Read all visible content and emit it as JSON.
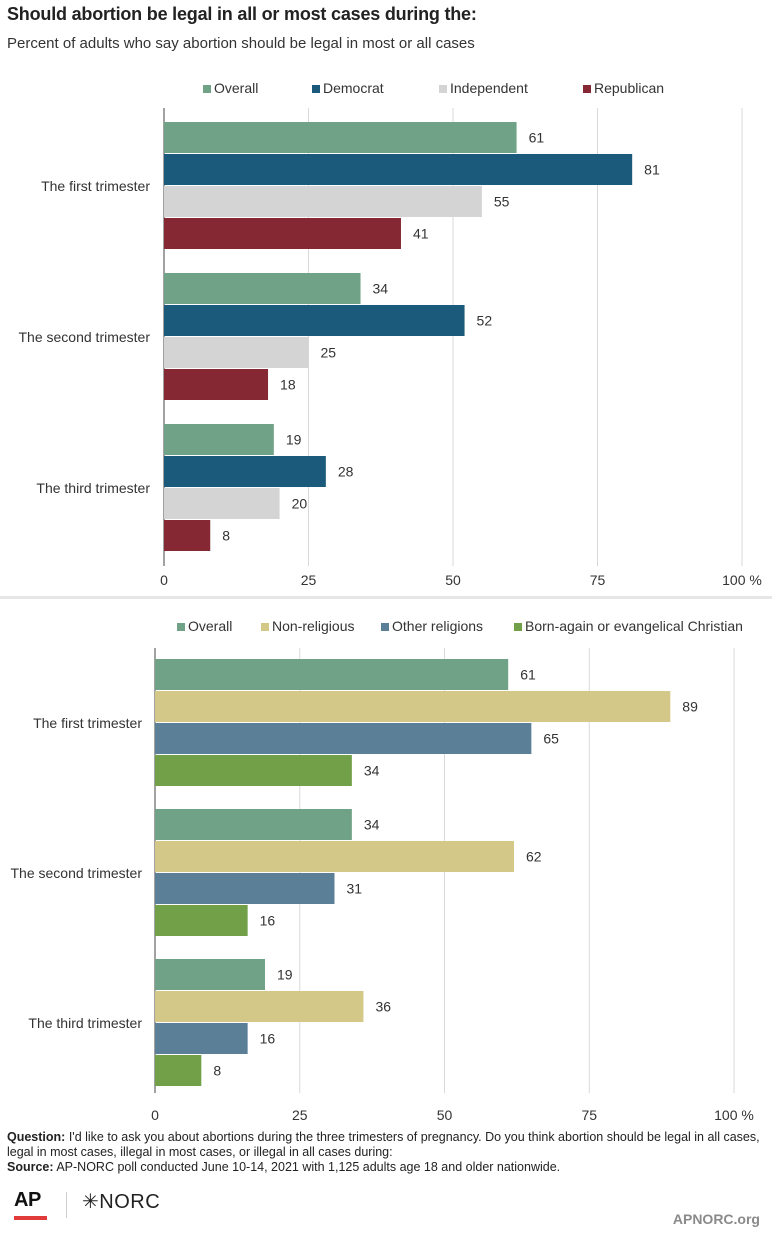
{
  "title": "Should abortion be legal in all or most cases during the:",
  "subtitle": "Percent of adults who say abortion should be legal in most or all cases",
  "chart_data": [
    {
      "type": "bar",
      "orientation": "horizontal",
      "categories": [
        "The first trimester",
        "The second trimester",
        "The third trimester"
      ],
      "series": [
        {
          "name": "Overall",
          "color": "#6fa287",
          "values": [
            61,
            34,
            19
          ]
        },
        {
          "name": "Democrat",
          "color": "#1b5a7a",
          "values": [
            81,
            52,
            28
          ]
        },
        {
          "name": "Independent",
          "color": "#d4d4d4",
          "values": [
            55,
            25,
            20
          ]
        },
        {
          "name": "Republican",
          "color": "#862834",
          "values": [
            41,
            18,
            8
          ]
        }
      ],
      "xlim": [
        0,
        100
      ],
      "ticks": [
        "0",
        "25",
        "50",
        "75",
        "100 %"
      ],
      "legend": "top",
      "grid": true
    },
    {
      "type": "bar",
      "orientation": "horizontal",
      "categories": [
        "The first trimester",
        "The second trimester",
        "The third trimester"
      ],
      "series": [
        {
          "name": "Overall",
          "color": "#6fa287",
          "values": [
            61,
            34,
            19
          ]
        },
        {
          "name": "Non-religious",
          "color": "#d3c887",
          "values": [
            89,
            62,
            36
          ]
        },
        {
          "name": "Other religions",
          "color": "#5a7f96",
          "values": [
            65,
            31,
            16
          ]
        },
        {
          "name": "Born-again or evangelical Christian",
          "color": "#72a048",
          "values": [
            34,
            16,
            8
          ]
        }
      ],
      "xlim": [
        0,
        100
      ],
      "ticks": [
        "0",
        "25",
        "50",
        "75",
        "100  %"
      ],
      "legend": "top",
      "grid": true
    }
  ],
  "footer": {
    "question_label": "Question:",
    "question_text": "I'd like to ask you about abortions during the three trimesters of pregnancy. Do you think abortion should be legal in all cases, legal in most cases, illegal in most cases, or illegal in all cases during:",
    "source_label": "Source:",
    "source_text": "AP-NORC poll conducted June 10-14, 2021 with 1,125 adults age 18 and older nationwide."
  },
  "logos": {
    "ap": "AP",
    "norc": "✳NORC"
  },
  "site": "APNORC.org"
}
